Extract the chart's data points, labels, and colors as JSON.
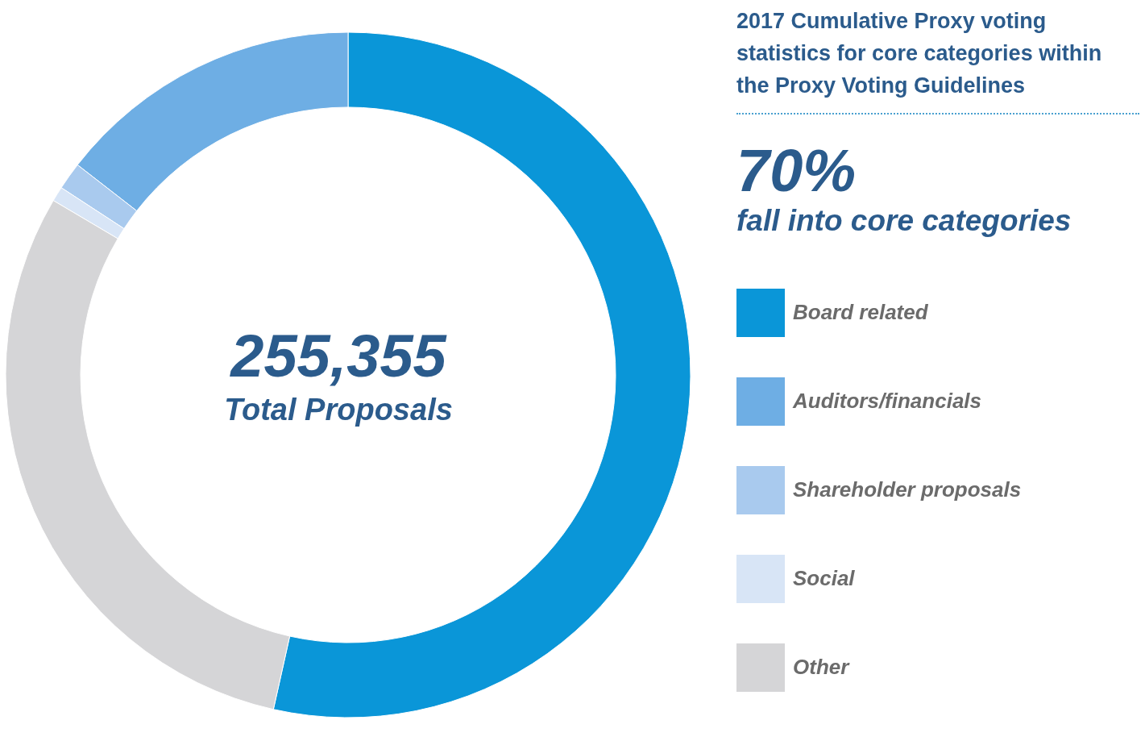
{
  "chart_data": {
    "type": "donut",
    "title": "2017 Cumulative Proxy voting statistics for core categories within the Proxy Voting Guidelines",
    "categories": [
      "Board related",
      "Auditors/financials",
      "Shareholder proposals",
      "Social",
      "Other"
    ],
    "values": [
      53.5,
      14.5,
      1.3,
      0.7,
      30
    ],
    "colors": [
      "#0a96d8",
      "#6eaee4",
      "#a9caee",
      "#d8e5f6",
      "#d5d5d7"
    ],
    "annotations": [
      "255,355",
      "Total Proposals",
      "70%",
      "fall into core categories"
    ],
    "legend": "right"
  }
}
